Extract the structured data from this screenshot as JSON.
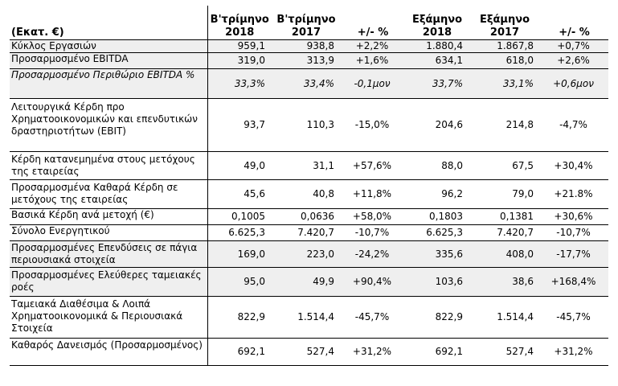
{
  "header": {
    "label": "(Εκατ. €)",
    "cols": [
      {
        "l1": "Β'τρίμηνο",
        "l2": "2018"
      },
      {
        "l1": "Β'τρίμηνο",
        "l2": "2017"
      },
      {
        "l1": "+/- %",
        "l2": ""
      },
      {
        "l1": "Εξάμηνο",
        "l2": "2018"
      },
      {
        "l1": "Εξάμηνο",
        "l2": "2017"
      },
      {
        "l1": "+/- %",
        "l2": ""
      }
    ]
  },
  "rows": [
    {
      "label": "Κύκλος Εργασιών",
      "v": [
        "959,1",
        "938,8",
        "+2,2%",
        "1.880,4",
        "1.867,8",
        "+0,7%"
      ]
    },
    {
      "label": "Προσαρμοσμένο EBITDA",
      "v": [
        "319,0",
        "313,9",
        "+1,6%",
        "634,1",
        "618,0",
        "+2,6%"
      ]
    },
    {
      "label": "Προσαρμοσμένο Περιθώριο EBITDA %",
      "v": [
        "33,3%",
        "33,4%",
        "-0,1μον",
        "33,7%",
        "33,1%",
        "+0,6μον"
      ]
    },
    {
      "label": "Λειτουργικά Κέρδη προ Χρηματοοικονομικών και επενδυτικών δραστηριοτήτων (EBIT)",
      "v": [
        "93,7",
        "110,3",
        "-15,0%",
        "204,6",
        "214,8",
        "-4,7%"
      ]
    },
    {
      "label": "Κέρδη κατανεμημένα στους μετόχους της εταιρείας",
      "v": [
        "49,0",
        "31,1",
        "+57,6%",
        "88,0",
        "67,5",
        "+30,4%"
      ]
    },
    {
      "label": "Προσαρμοσμένα Καθαρά Κέρδη σε μετόχους της εταιρείας",
      "v": [
        "45,6",
        "40,8",
        "+11,8%",
        "96,2",
        "79,0",
        "+21.8%"
      ]
    },
    {
      "label": "Βασικά Κέρδη ανά μετοχή (€)",
      "v": [
        "0,1005",
        "0,0636",
        "+58,0%",
        "0,1803",
        "0,1381",
        "+30,6%"
      ]
    },
    {
      "label": "Σύνολο Ενεργητικού",
      "v": [
        "6.625,3",
        "7.420,7",
        "-10,7%",
        "6.625,3",
        "7.420,7",
        "-10,7%"
      ]
    },
    {
      "label": "Προσαρμοσμένες Επενδύσεις σε πάγια περιουσιακά στοιχεία",
      "v": [
        "169,0",
        "223,0",
        "-24,2%",
        "335,6",
        "408,0",
        "-17,7%"
      ]
    },
    {
      "label": "Προσαρμοσμένες Ελεύθερες ταμειακές ροές",
      "v": [
        "95,0",
        "49,9",
        "+90,4%",
        "103,6",
        "38,6",
        "+168,4%"
      ]
    },
    {
      "label": "Ταμειακά Διαθέσιμα & Λοιπά Χρηματοοικονομικά & Περιουσιακά Στοιχεία",
      "v": [
        "822,9",
        "1.514,4",
        "-45,7%",
        "822,9",
        "1.514,4",
        "-45,7%"
      ]
    },
    {
      "label": "Καθαρός Δανεισμός (Προσαρμοσμένος)",
      "v": [
        "692,1",
        "527,4",
        "+31,2%",
        "692,1",
        "527,4",
        "+31,2%"
      ]
    }
  ]
}
